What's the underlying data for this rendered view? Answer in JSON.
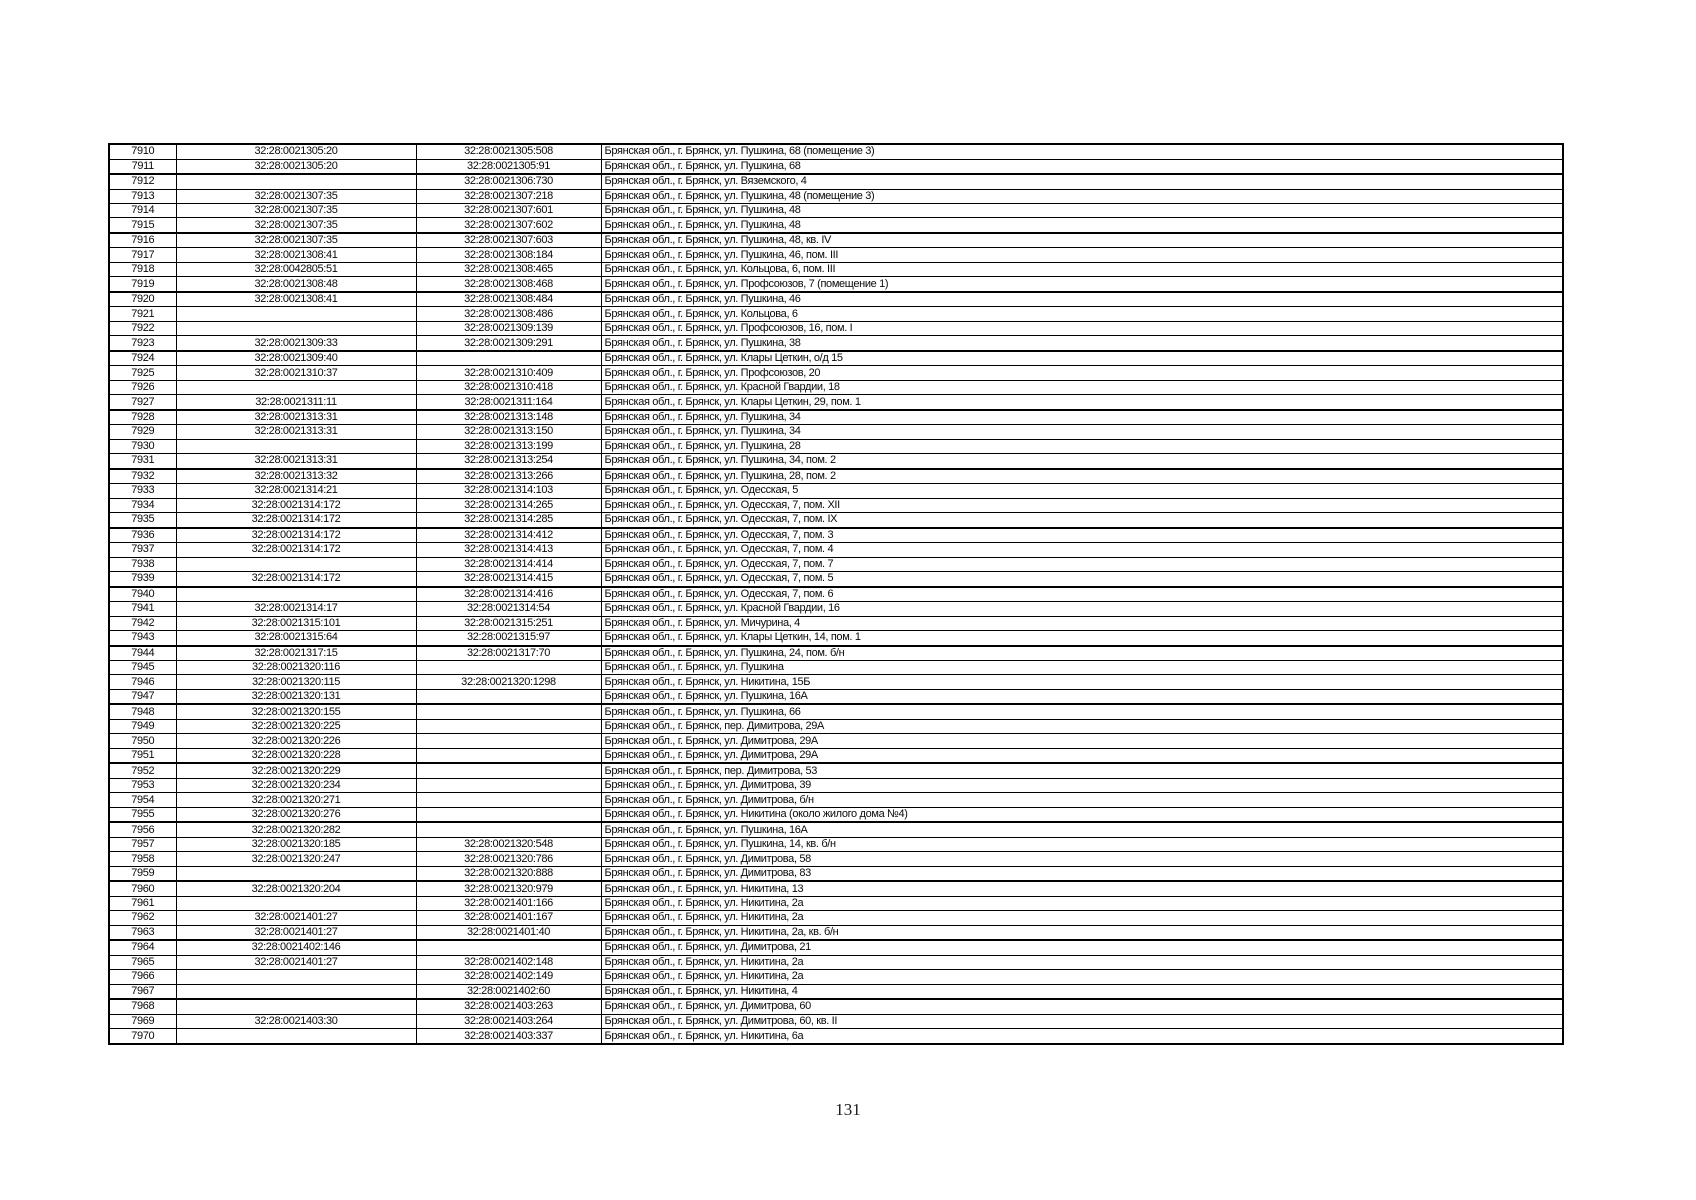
{
  "page": {
    "number_label": "131"
  },
  "table": {
    "rows": [
      {
        "n": "7910",
        "prev": "32:28:0021305:20",
        "cur": "32:28:0021305:508",
        "addr": "Брянская обл., г. Брянск, ул. Пушкина, 68 (помещение 3)"
      },
      {
        "n": "7911",
        "prev": "32:28:0021305:20",
        "cur": "32:28:0021305:91",
        "addr": "Брянская обл., г. Брянск, ул. Пушкина, 68"
      },
      {
        "n": "7912",
        "prev": "",
        "cur": "32:28:0021306:730",
        "addr": "Брянская обл., г. Брянск, ул. Вяземского, 4"
      },
      {
        "n": "7913",
        "prev": "32:28:0021307:35",
        "cur": "32:28:0021307:218",
        "addr": "Брянская обл., г. Брянск, ул. Пушкина, 48 (помещение 3)"
      },
      {
        "n": "7914",
        "prev": "32:28:0021307:35",
        "cur": "32:28:0021307:601",
        "addr": "Брянская обл., г. Брянск, ул. Пушкина, 48"
      },
      {
        "n": "7915",
        "prev": "32:28:0021307:35",
        "cur": "32:28:0021307:602",
        "addr": "Брянская обл., г. Брянск, ул. Пушкина, 48"
      },
      {
        "n": "7916",
        "prev": "32:28:0021307:35",
        "cur": "32:28:0021307:603",
        "addr": "Брянская обл., г. Брянск, ул. Пушкина, 48, кв. IV"
      },
      {
        "n": "7917",
        "prev": "32:28:0021308:41",
        "cur": "32:28:0021308:184",
        "addr": "Брянская обл., г. Брянск, ул. Пушкина, 46, пом. III"
      },
      {
        "n": "7918",
        "prev": "32:28:0042805:51",
        "cur": "32:28:0021308:465",
        "addr": "Брянская обл., г. Брянск, ул. Кольцова, 6, пом. III"
      },
      {
        "n": "7919",
        "prev": "32:28:0021308:48",
        "cur": "32:28:0021308:468",
        "addr": "Брянская обл., г. Брянск, ул. Профсоюзов, 7 (помещение 1)"
      },
      {
        "n": "7920",
        "prev": "32:28:0021308:41",
        "cur": "32:28:0021308:484",
        "addr": "Брянская обл., г. Брянск, ул. Пушкина, 46"
      },
      {
        "n": "7921",
        "prev": "",
        "cur": "32:28:0021308:486",
        "addr": "Брянская обл., г. Брянск, ул. Кольцова, 6"
      },
      {
        "n": "7922",
        "prev": "",
        "cur": "32:28:0021309:139",
        "addr": "Брянская обл., г. Брянск, ул. Профсоюзов, 16, пом. I"
      },
      {
        "n": "7923",
        "prev": "32:28:0021309:33",
        "cur": "32:28:0021309:291",
        "addr": "Брянская обл., г. Брянск, ул. Пушкина, 38"
      },
      {
        "n": "7924",
        "prev": "32:28:0021309:40",
        "cur": "",
        "addr": "Брянская обл., г. Брянск, ул. Клары Цеткин, о/д 15"
      },
      {
        "n": "7925",
        "prev": "32:28:0021310:37",
        "cur": "32:28:0021310:409",
        "addr": "Брянская обл., г. Брянск, ул. Профсоюзов, 20"
      },
      {
        "n": "7926",
        "prev": "",
        "cur": "32:28:0021310:418",
        "addr": "Брянская обл., г. Брянск, ул. Красной Гвардии, 18"
      },
      {
        "n": "7927",
        "prev": "32:28:0021311:11",
        "cur": "32:28:0021311:164",
        "addr": "Брянская обл., г. Брянск, ул. Клары Цеткин, 29, пом. 1"
      },
      {
        "n": "7928",
        "prev": "32:28:0021313:31",
        "cur": "32:28:0021313:148",
        "addr": "Брянская обл., г. Брянск, ул. Пушкина, 34"
      },
      {
        "n": "7929",
        "prev": "32:28:0021313:31",
        "cur": "32:28:0021313:150",
        "addr": "Брянская обл., г. Брянск, ул. Пушкина, 34"
      },
      {
        "n": "7930",
        "prev": "",
        "cur": "32:28:0021313:199",
        "addr": "Брянская обл., г. Брянск, ул. Пушкина, 28"
      },
      {
        "n": "7931",
        "prev": "32:28:0021313:31",
        "cur": "32:28:0021313:254",
        "addr": "Брянская обл., г. Брянск, ул. Пушкина, 34, пом. 2"
      },
      {
        "n": "7932",
        "prev": "32:28:0021313:32",
        "cur": "32:28:0021313:266",
        "addr": "Брянская обл., г. Брянск, ул. Пушкина, 28, пом. 2"
      },
      {
        "n": "7933",
        "prev": "32:28:0021314:21",
        "cur": "32:28:0021314:103",
        "addr": "Брянская обл., г. Брянск, ул. Одесская, 5"
      },
      {
        "n": "7934",
        "prev": "32:28:0021314:172",
        "cur": "32:28:0021314:265",
        "addr": "Брянская обл., г. Брянск, ул. Одесская, 7, пом. XII"
      },
      {
        "n": "7935",
        "prev": "32:28:0021314:172",
        "cur": "32:28:0021314:285",
        "addr": "Брянская обл., г. Брянск, ул. Одесская, 7, пом. IX"
      },
      {
        "n": "7936",
        "prev": "32:28:0021314:172",
        "cur": "32:28:0021314:412",
        "addr": "Брянская обл., г. Брянск, ул. Одесская, 7, пом. 3"
      },
      {
        "n": "7937",
        "prev": "32:28:0021314:172",
        "cur": "32:28:0021314:413",
        "addr": "Брянская обл., г. Брянск, ул. Одесская, 7, пом. 4"
      },
      {
        "n": "7938",
        "prev": "",
        "cur": "32:28:0021314:414",
        "addr": "Брянская обл., г. Брянск, ул. Одесская, 7, пом. 7"
      },
      {
        "n": "7939",
        "prev": "32:28:0021314:172",
        "cur": "32:28:0021314:415",
        "addr": "Брянская обл., г. Брянск, ул. Одесская, 7, пом. 5"
      },
      {
        "n": "7940",
        "prev": "",
        "cur": "32:28:0021314:416",
        "addr": "Брянская обл., г. Брянск, ул. Одесская, 7, пом. 6"
      },
      {
        "n": "7941",
        "prev": "32:28:0021314:17",
        "cur": "32:28:0021314:54",
        "addr": "Брянская обл., г. Брянск, ул. Красной Гвардии, 16"
      },
      {
        "n": "7942",
        "prev": "32:28:0021315:101",
        "cur": "32:28:0021315:251",
        "addr": "Брянская обл., г. Брянск, ул. Мичурина, 4"
      },
      {
        "n": "7943",
        "prev": "32:28:0021315:64",
        "cur": "32:28:0021315:97",
        "addr": "Брянская обл., г. Брянск, ул. Клары Цеткин, 14, пом. 1"
      },
      {
        "n": "7944",
        "prev": "32:28:0021317:15",
        "cur": "32:28:0021317:70",
        "addr": "Брянская обл., г. Брянск, ул. Пушкина, 24, пом. б/н"
      },
      {
        "n": "7945",
        "prev": "32:28:0021320:116",
        "cur": "",
        "addr": "Брянская обл., г. Брянск, ул. Пушкина"
      },
      {
        "n": "7946",
        "prev": "32:28:0021320:115",
        "cur": "32:28:0021320:1298",
        "addr": "Брянская обл., г. Брянск, ул. Никитина, 15Б"
      },
      {
        "n": "7947",
        "prev": "32:28:0021320:131",
        "cur": "",
        "addr": "Брянская обл., г. Брянск, ул. Пушкина, 16А"
      },
      {
        "n": "7948",
        "prev": "32:28:0021320:155",
        "cur": "",
        "addr": "Брянская обл., г. Брянск, ул. Пушкина, 66"
      },
      {
        "n": "7949",
        "prev": "32:28:0021320:225",
        "cur": "",
        "addr": "Брянская обл., г. Брянск, пер. Димитрова, 29А"
      },
      {
        "n": "7950",
        "prev": "32:28:0021320:226",
        "cur": "",
        "addr": "Брянская обл., г. Брянск, ул. Димитрова, 29А"
      },
      {
        "n": "7951",
        "prev": "32:28:0021320:228",
        "cur": "",
        "addr": "Брянская обл., г. Брянск, ул. Димитрова, 29А"
      },
      {
        "n": "7952",
        "prev": "32:28:0021320:229",
        "cur": "",
        "addr": "Брянская обл., г. Брянск, пер. Димитрова, 53"
      },
      {
        "n": "7953",
        "prev": "32:28:0021320:234",
        "cur": "",
        "addr": "Брянская обл., г. Брянск, ул. Димитрова, 39"
      },
      {
        "n": "7954",
        "prev": "32:28:0021320:271",
        "cur": "",
        "addr": "Брянская обл., г. Брянск, ул. Димитрова, б/н"
      },
      {
        "n": "7955",
        "prev": "32:28:0021320:276",
        "cur": "",
        "addr": "Брянская обл., г. Брянск, ул. Никитина (около жилого дома №4)"
      },
      {
        "n": "7956",
        "prev": "32:28:0021320:282",
        "cur": "",
        "addr": "Брянская обл., г. Брянск, ул. Пушкина, 16А"
      },
      {
        "n": "7957",
        "prev": "32:28:0021320:185",
        "cur": "32:28:0021320:548",
        "addr": "Брянская обл., г. Брянск, ул. Пушкина, 14, кв. б/н"
      },
      {
        "n": "7958",
        "prev": "32:28:0021320:247",
        "cur": "32:28:0021320:786",
        "addr": "Брянская обл., г. Брянск, ул. Димитрова, 58"
      },
      {
        "n": "7959",
        "prev": "",
        "cur": "32:28:0021320:888",
        "addr": "Брянская обл., г. Брянск, ул. Димитрова, 83"
      },
      {
        "n": "7960",
        "prev": "32:28:0021320:204",
        "cur": "32:28:0021320:979",
        "addr": "Брянская обл., г. Брянск, ул. Никитина, 13"
      },
      {
        "n": "7961",
        "prev": "",
        "cur": "32:28:0021401:166",
        "addr": "Брянская обл., г. Брянск, ул. Никитина, 2а"
      },
      {
        "n": "7962",
        "prev": "32:28:0021401:27",
        "cur": "32:28:0021401:167",
        "addr": "Брянская обл., г. Брянск, ул. Никитина, 2а"
      },
      {
        "n": "7963",
        "prev": "32:28:0021401:27",
        "cur": "32:28:0021401:40",
        "addr": "Брянская обл., г. Брянск, ул. Никитина, 2а, кв. б/н"
      },
      {
        "n": "7964",
        "prev": "32:28:0021402:146",
        "cur": "",
        "addr": "Брянская обл., г. Брянск, ул. Димитрова, 21"
      },
      {
        "n": "7965",
        "prev": "32:28:0021401:27",
        "cur": "32:28:0021402:148",
        "addr": "Брянская обл., г. Брянск, ул. Никитина, 2а"
      },
      {
        "n": "7966",
        "prev": "",
        "cur": "32:28:0021402:149",
        "addr": "Брянская обл., г. Брянск, ул. Никитина, 2а"
      },
      {
        "n": "7967",
        "prev": "",
        "cur": "32:28:0021402:60",
        "addr": "Брянская обл., г. Брянск, ул. Никитина, 4"
      },
      {
        "n": "7968",
        "prev": "",
        "cur": "32:28:0021403:263",
        "addr": "Брянская обл., г. Брянск, ул. Димитрова, 60"
      },
      {
        "n": "7969",
        "prev": "32:28:0021403:30",
        "cur": "32:28:0021403:264",
        "addr": "Брянская обл., г. Брянск, ул. Димитрова, 60, кв. II"
      },
      {
        "n": "7970",
        "prev": "",
        "cur": "32:28:0021403:337",
        "addr": "Брянская обл., г. Брянск, ул. Никитина, 6а"
      }
    ]
  }
}
